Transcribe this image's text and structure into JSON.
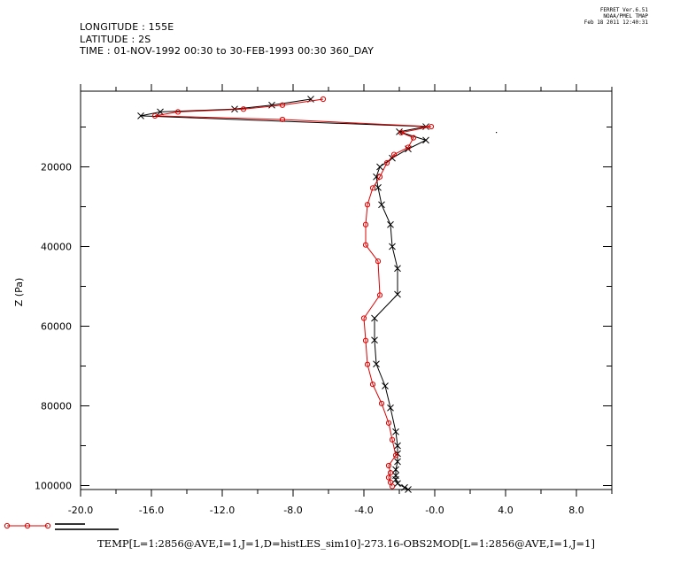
{
  "header": {
    "line1": "LONGITUDE : 155E",
    "line2": "LATITUDE : 2S",
    "line3": "TIME : 01-NOV-1992 00:30 to 30-FEB-1993 00:30 360_DAY"
  },
  "stamp": {
    "line1": "FERRET  Ver.6.51",
    "line2": "NOAA/PMEL TMAP",
    "line3": "Feb 18 2011 12:40:31"
  },
  "caption": "TEMP[L=1:2856@AVE,I=1,J=1,D=histLES_sim10]-273.16-OBS2MOD[L=1:2856@AVE,I=1,J=1]",
  "colors": {
    "series_black": "#000000",
    "series_red": "#dd0000"
  },
  "chart_data": {
    "type": "line",
    "title": "",
    "xlabel": "",
    "ylabel": "Z (Pa)",
    "xlim": [
      -20,
      10
    ],
    "ylim": [
      1000,
      101000
    ],
    "y_inverted": true,
    "x_ticks": [
      -20,
      -16,
      -12,
      -8,
      -4,
      0,
      4,
      8
    ],
    "x_tick_labels": [
      "-20.0",
      "-16.0",
      "-12.0",
      "-8.0",
      "-4.0",
      "-0.0",
      "4.0",
      "8.0"
    ],
    "y_ticks": [
      20000,
      40000,
      60000,
      80000,
      100000
    ],
    "y_tick_labels": [
      "20000",
      "40000",
      "60000",
      "80000",
      "100000"
    ],
    "grid": false,
    "legend_position": "bottom-left",
    "series": [
      {
        "color": "#000000",
        "marker": "x",
        "points": [
          [
            -7.0,
            3000
          ],
          [
            -9.2,
            4500
          ],
          [
            -11.3,
            5500
          ],
          [
            -15.5,
            6200
          ],
          [
            -16.6,
            7200
          ],
          [
            -0.5,
            9900
          ],
          [
            -2.0,
            11200
          ],
          [
            -0.5,
            13300
          ],
          [
            -1.5,
            15500
          ],
          [
            -2.4,
            17800
          ],
          [
            -3.1,
            20000
          ],
          [
            -3.3,
            22500
          ],
          [
            -3.2,
            25200
          ],
          [
            -3.0,
            29500
          ],
          [
            -2.5,
            34500
          ],
          [
            -2.4,
            40000
          ],
          [
            -2.1,
            45500
          ],
          [
            -2.1,
            52000
          ],
          [
            -3.4,
            58000
          ],
          [
            -3.4,
            63500
          ],
          [
            -3.3,
            69500
          ],
          [
            -2.8,
            75000
          ],
          [
            -2.5,
            80500
          ],
          [
            -2.2,
            86500
          ],
          [
            -2.1,
            90000
          ],
          [
            -2.1,
            92000
          ],
          [
            -2.1,
            94000
          ],
          [
            -2.2,
            96000
          ],
          [
            -2.2,
            97500
          ],
          [
            -2.2,
            98500
          ],
          [
            -2.1,
            99500
          ],
          [
            -1.7,
            100500
          ],
          [
            -1.5,
            101000
          ]
        ]
      },
      {
        "color": "#dd0000",
        "marker": "o",
        "points": [
          [
            -6.3,
            3000
          ],
          [
            -8.6,
            4500
          ],
          [
            -10.8,
            5500
          ],
          [
            -14.5,
            6200
          ],
          [
            -15.8,
            7200
          ],
          [
            -8.6,
            8100
          ],
          [
            -0.2,
            9900
          ],
          [
            -1.9,
            11400
          ],
          [
            -1.2,
            12700
          ],
          [
            -1.5,
            15100
          ],
          [
            -2.3,
            16900
          ],
          [
            -2.7,
            19000
          ],
          [
            -3.1,
            22500
          ],
          [
            -3.5,
            25300
          ],
          [
            -3.8,
            29500
          ],
          [
            -3.9,
            34500
          ],
          [
            -3.9,
            39600
          ],
          [
            -3.2,
            43700
          ],
          [
            -3.1,
            52200
          ],
          [
            -4.0,
            58000
          ],
          [
            -3.9,
            63600
          ],
          [
            -3.8,
            69600
          ],
          [
            -3.5,
            74600
          ],
          [
            -3.0,
            79400
          ],
          [
            -2.6,
            84300
          ],
          [
            -2.4,
            88500
          ],
          [
            -2.2,
            92400
          ],
          [
            -2.6,
            95000
          ],
          [
            -2.5,
            96800
          ],
          [
            -2.6,
            98000
          ],
          [
            -2.5,
            99200
          ],
          [
            -2.4,
            100200
          ]
        ]
      }
    ]
  }
}
